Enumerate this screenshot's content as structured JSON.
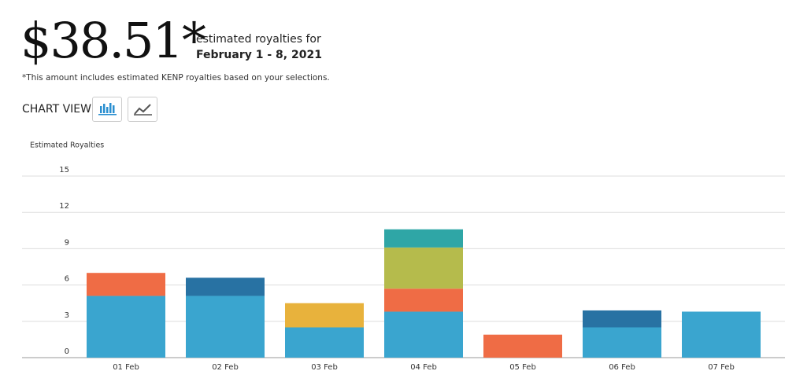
{
  "header": {
    "amount": "$38.51*",
    "caption": "estimated royalties for",
    "period": "February 1 - 8, 2021",
    "note": "*This amount includes estimated KENP royalties based on your selections.",
    "chart_view": "CHART VIEW"
  },
  "chart_data": {
    "type": "stacked_bar",
    "ylabel": "Estimated Royalties",
    "categories": [
      "01 Feb",
      "02 Feb",
      "03 Feb",
      "04 Feb",
      "05 Feb",
      "06 Feb",
      "07 Feb"
    ],
    "series": [
      {
        "color": "#3aa5cf",
        "values": [
          5.1,
          5.1,
          2.5,
          3.8,
          null,
          2.5,
          3.8
        ]
      },
      {
        "color": "#ef6c45",
        "values": [
          1.9,
          null,
          null,
          1.9,
          1.9,
          null,
          null
        ]
      },
      {
        "color": "#e8b23c",
        "values": [
          null,
          null,
          2.0,
          null,
          null,
          null,
          null
        ]
      },
      {
        "color": "#b5bb4c",
        "values": [
          null,
          null,
          null,
          3.4,
          null,
          null,
          null
        ]
      },
      {
        "color": "#2fa6a6",
        "values": [
          null,
          null,
          null,
          1.5,
          null,
          null,
          null
        ]
      },
      {
        "color": "#2872a3",
        "values": [
          null,
          1.5,
          null,
          null,
          null,
          1.4,
          null
        ]
      }
    ],
    "ylim": [
      0,
      15
    ],
    "yticks": [
      0,
      3,
      6,
      9,
      12,
      15
    ],
    "grid": true
  }
}
